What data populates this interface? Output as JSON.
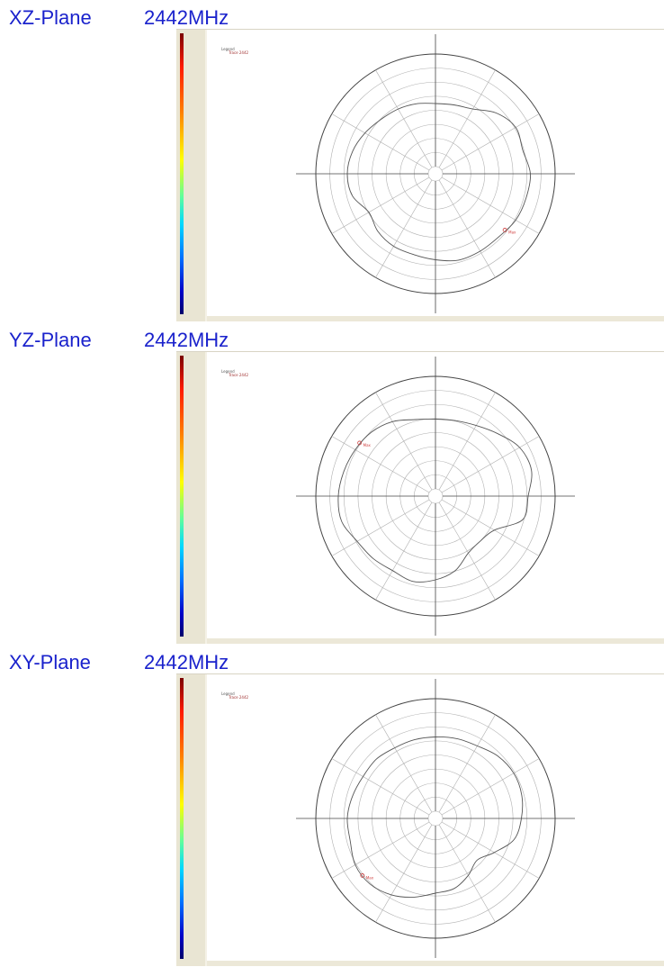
{
  "colors": {
    "title": "#1a22cc",
    "pattern_line": "#555555",
    "marker": "#d04040",
    "grid": "#b0b0b0"
  },
  "chart_data": [
    {
      "type": "line",
      "title": "XZ-Plane",
      "frequency": "2442MHz",
      "legend": {
        "top": "Legend",
        "series": "Trace 2442"
      },
      "angles_deg": [
        0,
        15,
        30,
        45,
        60,
        75,
        90,
        105,
        120,
        135,
        150,
        165,
        180,
        195,
        210,
        225,
        240,
        255,
        270,
        285,
        300,
        315,
        330,
        345
      ],
      "radius_norm": [
        0.56,
        0.57,
        0.6,
        0.7,
        0.76,
        0.74,
        0.78,
        0.77,
        0.76,
        0.73,
        0.73,
        0.73,
        0.7,
        0.68,
        0.68,
        0.66,
        0.62,
        0.7,
        0.72,
        0.7,
        0.66,
        0.62,
        0.6,
        0.58
      ],
      "marker": {
        "angle_deg": 129,
        "label": "Max"
      }
    },
    {
      "type": "line",
      "title": "YZ-Plane",
      "frequency": "2442MHz",
      "legend": {
        "top": "Legend",
        "series": "Trace 2442"
      },
      "angles_deg": [
        0,
        15,
        30,
        45,
        60,
        75,
        90,
        105,
        120,
        135,
        150,
        165,
        180,
        195,
        210,
        225,
        240,
        255,
        270,
        285,
        300,
        315,
        330,
        345
      ],
      "radius_norm": [
        0.62,
        0.63,
        0.66,
        0.72,
        0.8,
        0.82,
        0.76,
        0.74,
        0.54,
        0.5,
        0.52,
        0.62,
        0.68,
        0.72,
        0.7,
        0.72,
        0.74,
        0.8,
        0.8,
        0.78,
        0.76,
        0.74,
        0.7,
        0.64
      ],
      "marker": {
        "angle_deg": 305,
        "label": "Max"
      }
    },
    {
      "type": "line",
      "title": "XY-Plane",
      "frequency": "2442MHz",
      "legend": {
        "top": "Legend",
        "series": "Trace 2442"
      },
      "angles_deg": [
        0,
        15,
        30,
        45,
        60,
        75,
        90,
        105,
        120,
        135,
        150,
        165,
        180,
        195,
        210,
        225,
        240,
        255,
        270,
        285,
        300,
        315,
        330,
        345
      ],
      "radius_norm": [
        0.66,
        0.67,
        0.68,
        0.72,
        0.74,
        0.73,
        0.7,
        0.66,
        0.54,
        0.46,
        0.52,
        0.58,
        0.6,
        0.66,
        0.72,
        0.76,
        0.76,
        0.72,
        0.72,
        0.7,
        0.68,
        0.68,
        0.66,
        0.66
      ],
      "marker": {
        "angle_deg": 232,
        "label": "Max"
      }
    }
  ]
}
